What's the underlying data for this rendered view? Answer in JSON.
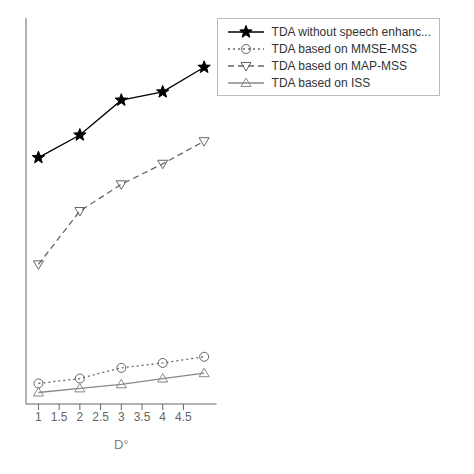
{
  "chart_data": {
    "type": "line",
    "x": [
      1,
      2,
      3,
      4,
      5
    ],
    "series": [
      {
        "name": "TDA without speech enhanc...",
        "color": "#000000",
        "values": [
          0.58,
          0.635,
          0.72,
          0.74,
          0.8
        ],
        "marker": "star",
        "line_style": "solid"
      },
      {
        "name": "TDA based on MMSE-MSS",
        "color": "#666666",
        "values": [
          0.03,
          0.042,
          0.068,
          0.08,
          0.095
        ],
        "marker": "circle",
        "line_style": "dotted"
      },
      {
        "name": "TDA based on MAP-MSS",
        "color": "#666666",
        "values": [
          0.32,
          0.45,
          0.515,
          0.565,
          0.62
        ],
        "marker": "triangle-down",
        "line_style": "dashed"
      },
      {
        "name": "TDA based on ISS",
        "color": "#888888",
        "values": [
          0.008,
          0.018,
          0.028,
          0.042,
          0.055
        ],
        "marker": "triangle-up",
        "line_style": "solid"
      }
    ],
    "xlabel": "D°",
    "xlim": [
      0.7,
      5.3
    ],
    "ylim": [
      -0.02,
      0.92
    ],
    "xticks": [
      1,
      1.5,
      2,
      2.5,
      3,
      3.5,
      4,
      4.5
    ],
    "grid": false,
    "legend": "upper right",
    "tick_labels": "x"
  }
}
